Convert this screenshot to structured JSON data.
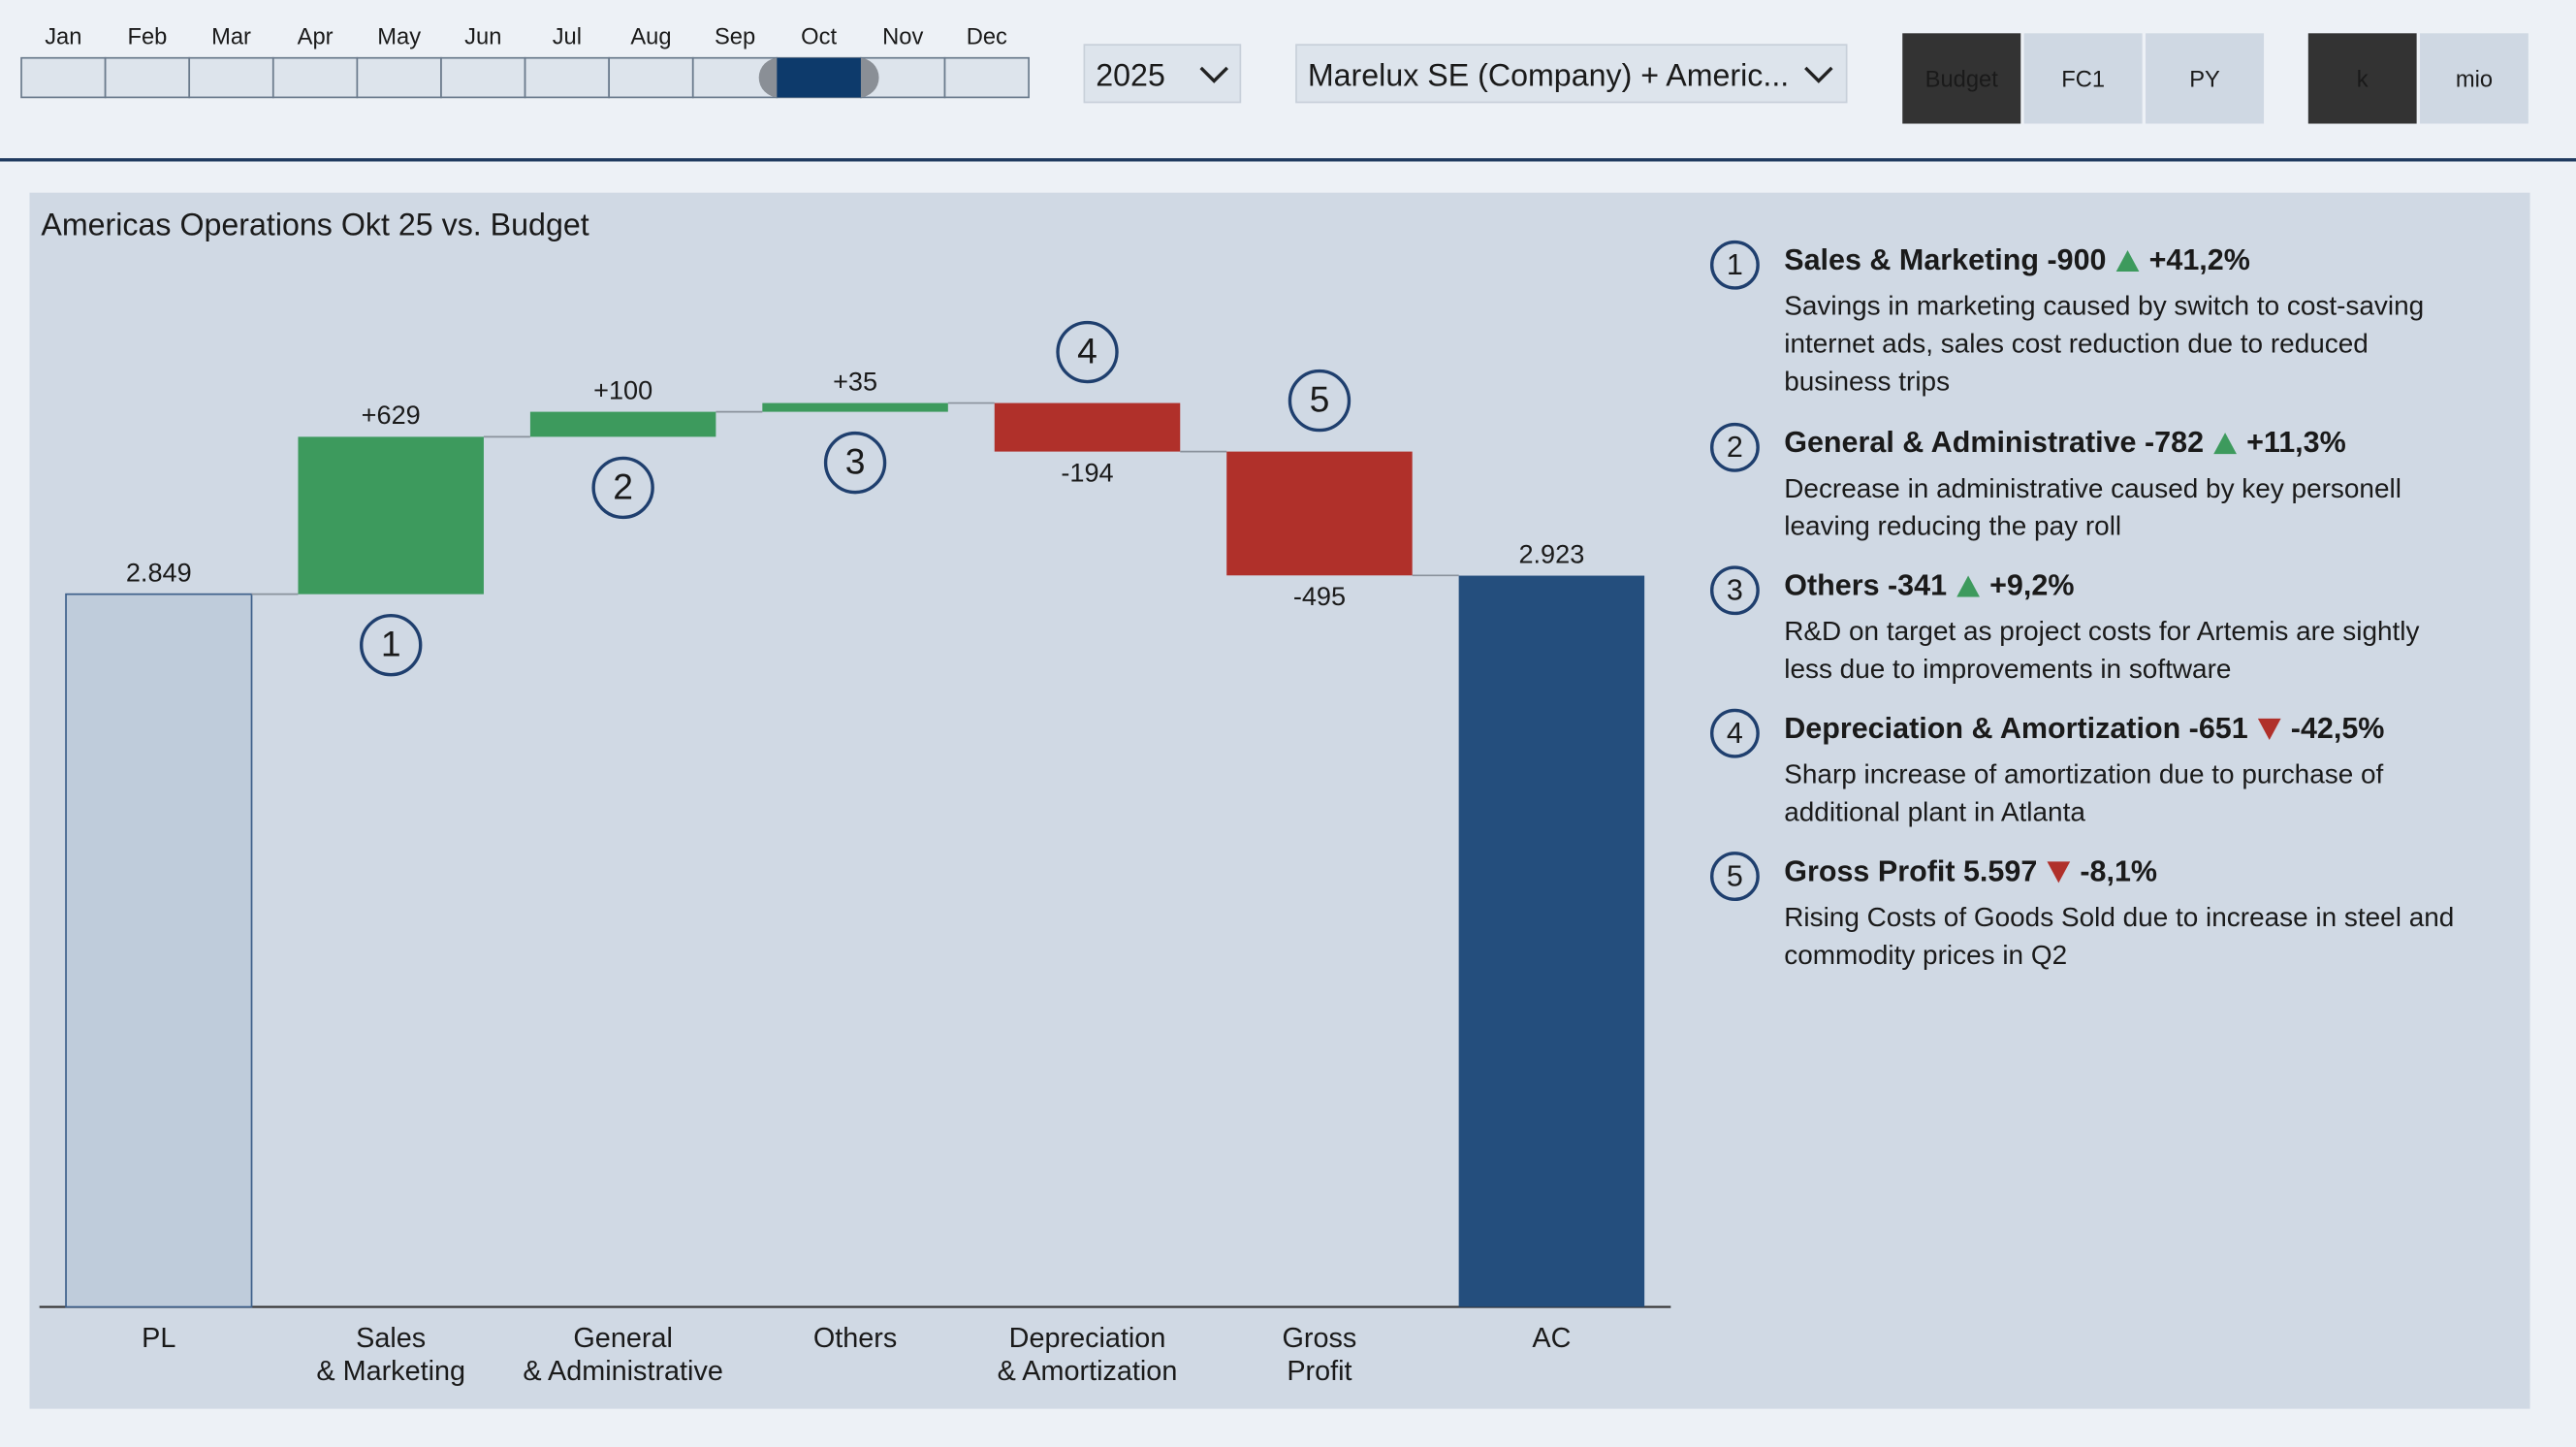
{
  "slicer": {
    "months": [
      "Jan",
      "Feb",
      "Mar",
      "Apr",
      "May",
      "Jun",
      "Jul",
      "Aug",
      "Sep",
      "Oct",
      "Nov",
      "Dec"
    ],
    "selected": 9
  },
  "year": "2025",
  "entity": "Marelux SE (Company) + Americ...",
  "scenarios": [
    "Budget",
    "FC1",
    "PY"
  ],
  "scenario_selected": 0,
  "units": [
    "k",
    "mio"
  ],
  "unit_selected": 0,
  "chart_data": {
    "type": "waterfall",
    "title": "Americas Operations Okt 25 vs. Budget",
    "categories": [
      [
        "PL"
      ],
      [
        "Sales",
        "& Marketing"
      ],
      [
        "General",
        "& Administrative"
      ],
      [
        "Others"
      ],
      [
        "Depreciation",
        "& Amortization"
      ],
      [
        "Gross",
        "Profit"
      ],
      [
        "AC"
      ]
    ],
    "values": [
      2849,
      629,
      100,
      35,
      -194,
      -495,
      2923
    ],
    "value_labels": [
      "2.849",
      "+629",
      "+100",
      "+35",
      "-194",
      "-495",
      "2.923"
    ],
    "measure": [
      "absolute",
      "relative",
      "relative",
      "relative",
      "relative",
      "relative",
      "total"
    ],
    "colors": {
      "absolute": "#bfccdb",
      "increase": "#3d9a5d",
      "decrease": "#b0302a",
      "total": "#244e7d"
    },
    "markers": [
      null,
      "1",
      "2",
      "3",
      "4",
      "5",
      null
    ]
  },
  "notes": [
    {
      "number": "1",
      "title": "Sales & Marketing -900",
      "direction": "up",
      "change": "+41,2%",
      "lines": [
        "Savings in marketing caused by switch to cost-saving",
        "internet ads, sales cost reduction due to reduced",
        "business trips"
      ]
    },
    {
      "number": "2",
      "title": "General & Administrative -782",
      "direction": "up",
      "change": "+11,3%",
      "lines": [
        "Decrease in administrative caused by key personell",
        "leaving reducing the pay roll"
      ]
    },
    {
      "number": "3",
      "title": "Others -341",
      "direction": "up",
      "change": "+9,2%",
      "lines": [
        "R&D on target as project costs for Artemis are sightly",
        "less due to improvements in software"
      ]
    },
    {
      "number": "4",
      "title": "Depreciation & Amortization -651",
      "direction": "down",
      "change": "-42,5%",
      "lines": [
        "Sharp increase of amortization due to purchase of",
        "additional plant in Atlanta"
      ]
    },
    {
      "number": "5",
      "title": "Gross Profit 5.597",
      "direction": "down",
      "change": "-8,1%",
      "lines": [
        "Rising Costs of Goods Sold due to increase in steel and",
        "commodity prices in Q2"
      ]
    }
  ]
}
